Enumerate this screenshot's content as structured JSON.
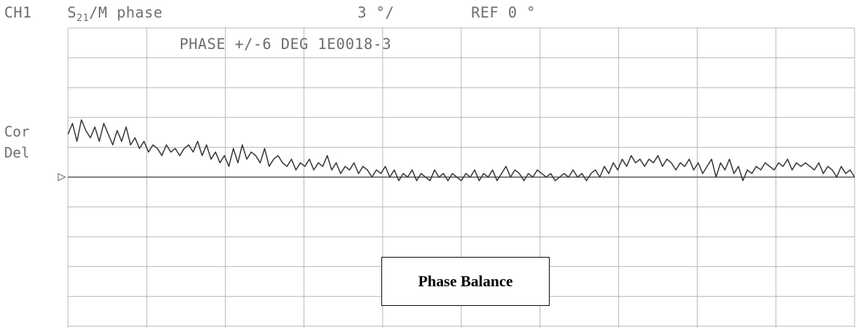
{
  "header": {
    "channel": "CH1",
    "param_s": "S",
    "param_sub": "21",
    "param_rest": "/M phase",
    "scale": "3 °/",
    "ref": "REF 0 °"
  },
  "trace_note": "PHASE +/-6 DEG 1E0018-3",
  "side_labels": [
    "Cor",
    "Del"
  ],
  "overlay_label": "Phase Balance",
  "colors": {
    "grid": "#b4b4b4",
    "trace": "#3a3a3a",
    "text": "#6e6e6e"
  },
  "chart_data": {
    "type": "line",
    "title": "",
    "xlabel": "",
    "ylabel": "",
    "y_per_division": 3,
    "ref_value": 0,
    "ylim": [
      -15,
      15
    ],
    "x_divisions": 10,
    "y_divisions": 10,
    "grid": true,
    "reference_marker": "left",
    "series": [
      {
        "values": [
          1.2,
          1.5,
          1.0,
          1.6,
          1.3,
          1.1,
          1.4,
          1.0,
          1.5,
          1.2,
          0.9,
          1.3,
          1.0,
          1.4,
          0.9,
          1.1,
          0.8,
          1.0,
          0.7,
          0.9,
          0.8,
          0.6,
          0.9,
          0.7,
          0.8,
          0.6,
          0.8,
          0.9,
          0.7,
          1.0,
          0.6,
          0.9,
          0.5,
          0.7,
          0.4,
          0.6,
          0.3,
          0.8,
          0.4,
          0.9,
          0.5,
          0.7,
          0.6,
          0.4,
          0.8,
          0.3,
          0.5,
          0.6,
          0.4,
          0.3,
          0.5,
          0.2,
          0.4,
          0.3,
          0.5,
          0.2,
          0.4,
          0.3,
          0.6,
          0.2,
          0.4,
          0.1,
          0.3,
          0.2,
          0.4,
          0.1,
          0.3,
          0.2,
          0.0,
          0.2,
          0.1,
          0.3,
          0.0,
          0.2,
          -0.1,
          0.1,
          0.0,
          0.2,
          -0.1,
          0.1,
          0.0,
          -0.1,
          0.2,
          0.0,
          0.1,
          -0.1,
          0.1,
          0.0,
          -0.1,
          0.1,
          0.0,
          0.2,
          -0.1,
          0.1,
          0.0,
          0.2,
          -0.1,
          0.1,
          0.3,
          0.0,
          0.2,
          0.1,
          -0.1,
          0.1,
          0.0,
          0.2,
          0.1,
          0.0,
          0.1,
          -0.1,
          0.0,
          0.1,
          0.0,
          0.2,
          0.0,
          0.1,
          -0.1,
          0.1,
          0.2,
          0.0,
          0.3,
          0.1,
          0.4,
          0.2,
          0.5,
          0.3,
          0.6,
          0.4,
          0.5,
          0.3,
          0.5,
          0.4,
          0.6,
          0.3,
          0.5,
          0.4,
          0.2,
          0.4,
          0.3,
          0.5,
          0.2,
          0.4,
          0.1,
          0.3,
          0.5,
          0.0,
          0.4,
          0.2,
          0.5,
          0.1,
          0.3,
          -0.1,
          0.2,
          0.1,
          0.3,
          0.2,
          0.4,
          0.3,
          0.2,
          0.4,
          0.3,
          0.5,
          0.2,
          0.4,
          0.3,
          0.4,
          0.3,
          0.2,
          0.4,
          0.1,
          0.3,
          0.2,
          0.0,
          0.3,
          0.1,
          0.2,
          0.0
        ]
      }
    ]
  }
}
